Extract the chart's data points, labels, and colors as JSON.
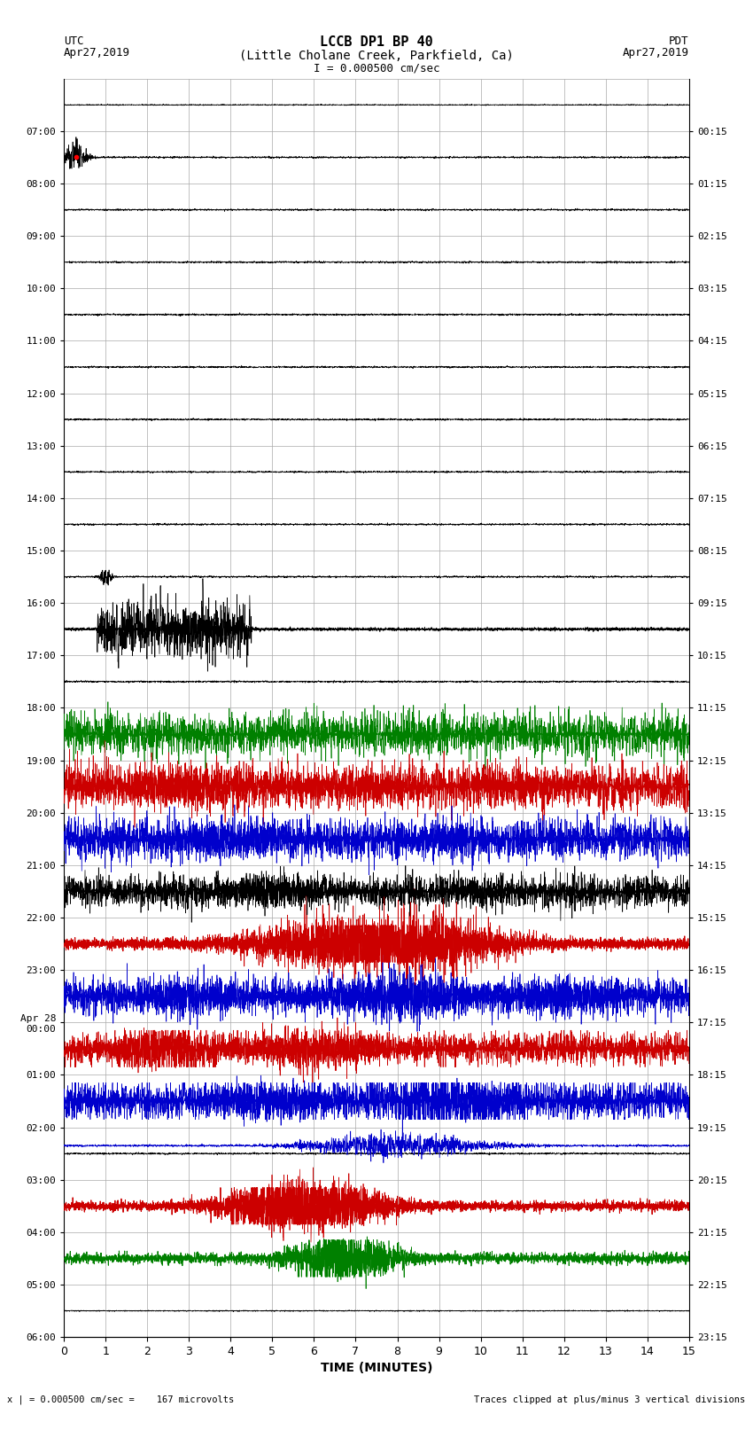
{
  "title_line1": "LCCB DP1 BP 40",
  "title_line2": "(Little Cholane Creek, Parkfield, Ca)",
  "title_line3": "I = 0.000500 cm/sec",
  "left_label_top": "UTC",
  "left_label_date": "Apr27,2019",
  "right_label_top": "PDT",
  "right_label_date": "Apr27,2019",
  "xlabel": "TIME (MINUTES)",
  "bottom_left": "x | = 0.000500 cm/sec =    167 microvolts",
  "bottom_right": "Traces clipped at plus/minus 3 vertical divisions",
  "utc_times": [
    "07:00",
    "08:00",
    "09:00",
    "10:00",
    "11:00",
    "12:00",
    "13:00",
    "14:00",
    "15:00",
    "16:00",
    "17:00",
    "18:00",
    "19:00",
    "20:00",
    "21:00",
    "22:00",
    "23:00",
    "Apr 28\n00:00",
    "01:00",
    "02:00",
    "03:00",
    "04:00",
    "05:00",
    "06:00"
  ],
  "pdt_times": [
    "00:15",
    "01:15",
    "02:15",
    "03:15",
    "04:15",
    "05:15",
    "06:15",
    "07:15",
    "08:15",
    "09:15",
    "10:15",
    "11:15",
    "12:15",
    "13:15",
    "14:15",
    "15:15",
    "16:15",
    "17:15",
    "18:15",
    "19:15",
    "20:15",
    "21:15",
    "22:15",
    "23:15"
  ],
  "n_rows": 24,
  "n_minutes": 15,
  "xmin": 0,
  "xmax": 15,
  "background_color": "#ffffff",
  "grid_color": "#aaaaaa",
  "trace_color_default": "#000000",
  "figsize": [
    8.5,
    16.13
  ]
}
